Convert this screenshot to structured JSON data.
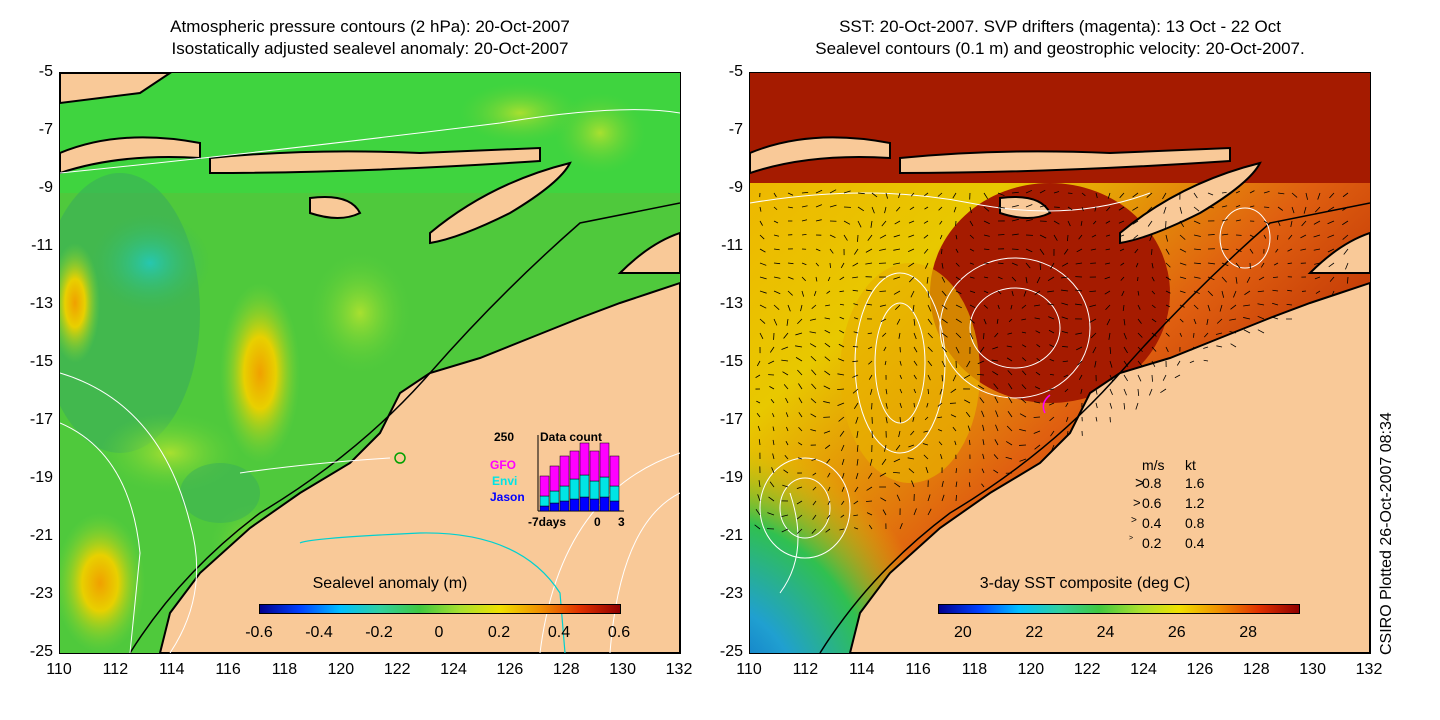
{
  "left_panel": {
    "title_line1": "Atmospheric pressure contours (2 hPa): 20-Oct-2007",
    "title_line2": "Isostatically adjusted sealevel anomaly: 20-Oct-2007",
    "colorbar_label": "Sealevel anomaly (m)",
    "colorbar_ticks": [
      "-0.6",
      "-0.4",
      "-0.2",
      "0",
      "0.2",
      "0.4",
      "0.6"
    ],
    "inset": {
      "title": "Data count",
      "ymax": "250",
      "series": [
        "GFO",
        "Envi",
        "Jason"
      ],
      "series_colors": [
        "#ff00ff",
        "#00e5e5",
        "#0000ff"
      ],
      "xlabel_left": "-7days",
      "x_ticks": [
        "0",
        "3"
      ]
    }
  },
  "right_panel": {
    "title_line1": "SST: 20-Oct-2007. SVP drifters (magenta): 13 Oct - 22 Oct",
    "title_line2": "Sealevel contours (0.1 m) and geostrophic velocity: 20-Oct-2007.",
    "colorbar_label": "3-day SST composite (deg C)",
    "colorbar_ticks": [
      "20",
      "22",
      "24",
      "26",
      "28"
    ],
    "velocity_legend": {
      "header_ms": "m/s",
      "header_kt": "kt",
      "rows": [
        {
          "ms": "0.8",
          "kt": "1.6"
        },
        {
          "ms": "0.6",
          "kt": "1.2"
        },
        {
          "ms": "0.4",
          "kt": "0.8"
        },
        {
          "ms": "0.2",
          "kt": "0.4"
        }
      ]
    }
  },
  "axes": {
    "lat_ticks": [
      "-5",
      "-7",
      "-9",
      "-11",
      "-13",
      "-15",
      "-17",
      "-19",
      "-21",
      "-23",
      "-25"
    ],
    "lon_ticks": [
      "110",
      "112",
      "114",
      "116",
      "118",
      "120",
      "122",
      "124",
      "126",
      "128",
      "130",
      "132"
    ]
  },
  "credit": "CSIRO Plotted 26-Oct-2007 08:34",
  "colors": {
    "land": "#f9c998",
    "sea_green": "#33cc33",
    "sst_warm": "#a51b00"
  }
}
